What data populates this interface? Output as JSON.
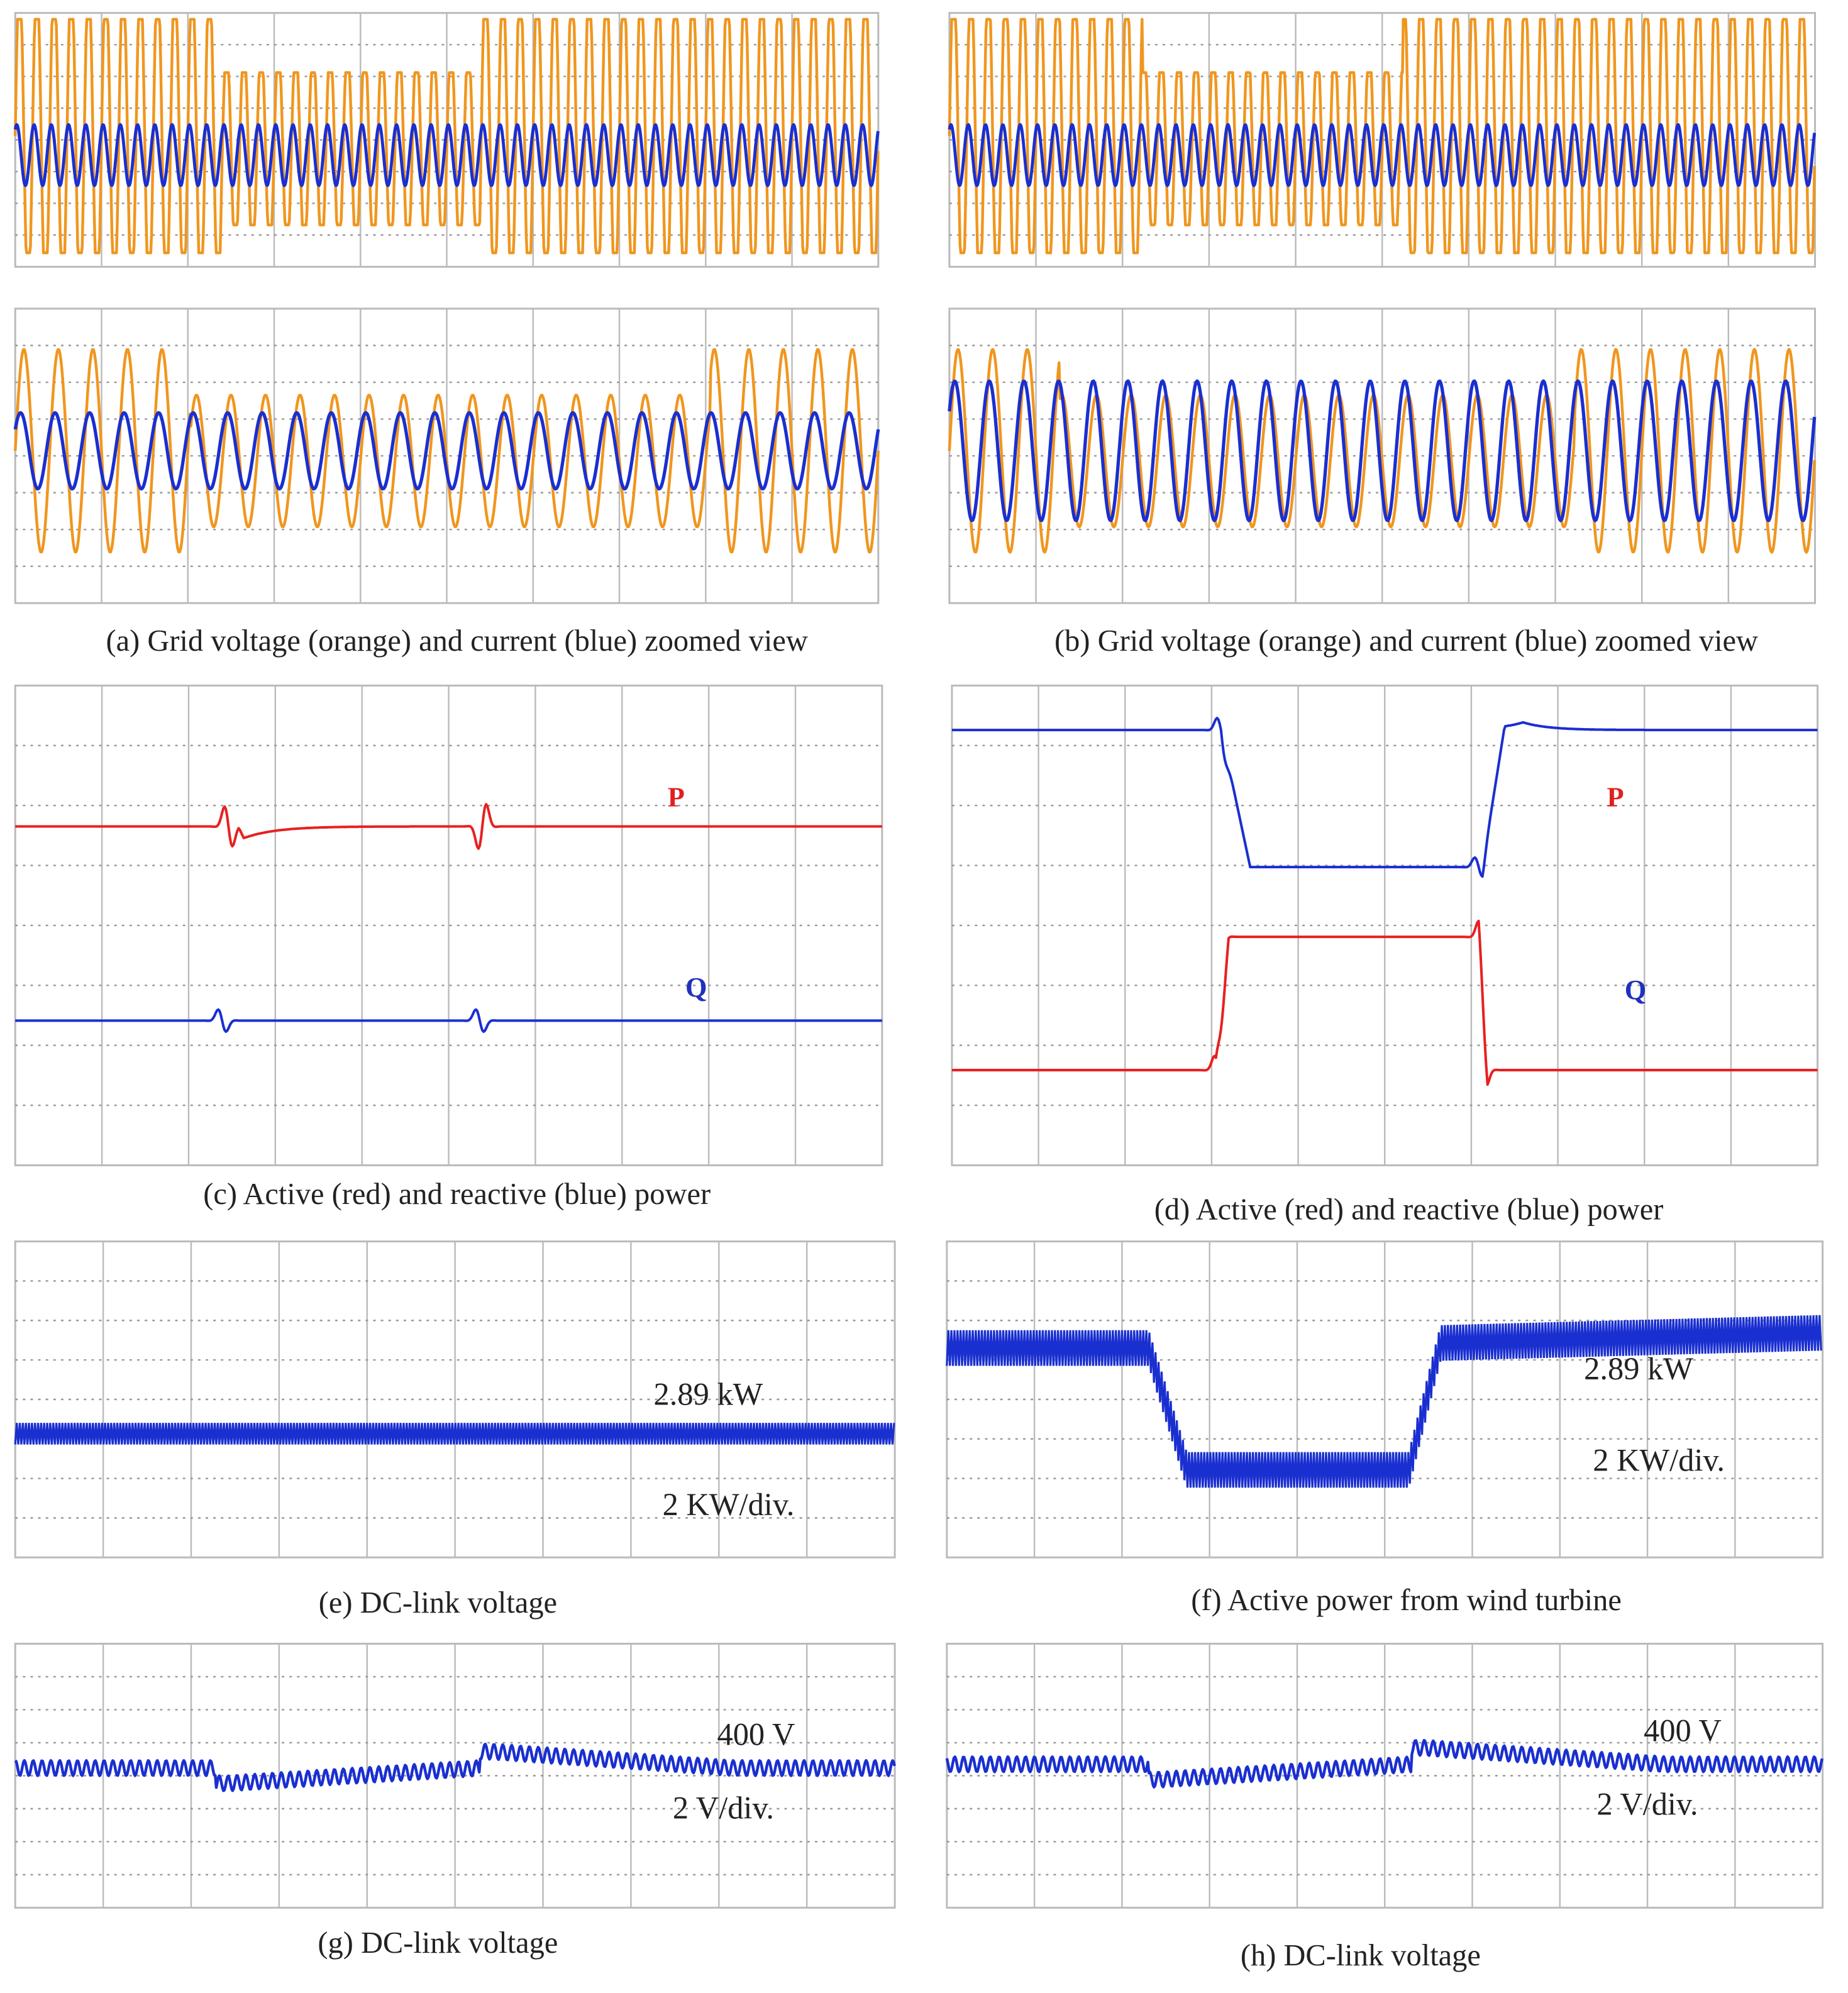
{
  "panels": [
    {
      "caption": "(a) Grid voltage (orange) and current (blue) zoomed view"
    },
    {
      "caption": "(b) Grid voltage (orange) and current (blue) zoomed view"
    },
    {
      "caption": "(c) Active (red) and reactive (blue) power",
      "labels": [
        "P",
        "Q"
      ]
    },
    {
      "caption": "(d) Active  (red) and reactive (blue) power",
      "labels": [
        "P",
        "Q"
      ]
    },
    {
      "caption": "(e) DC-link voltage",
      "labels": [
        "2.89 kW",
        "2 KW/div."
      ]
    },
    {
      "caption": "(f) Active power from wind turbine",
      "labels": [
        "2.89 kW",
        "2 KW/div."
      ]
    },
    {
      "caption": "(g) DC-link voltage",
      "labels": [
        "400 V",
        "2 V/div."
      ]
    },
    {
      "caption": "(h) DC-link voltage",
      "labels": [
        "400 V",
        "2 V/div."
      ]
    }
  ]
}
